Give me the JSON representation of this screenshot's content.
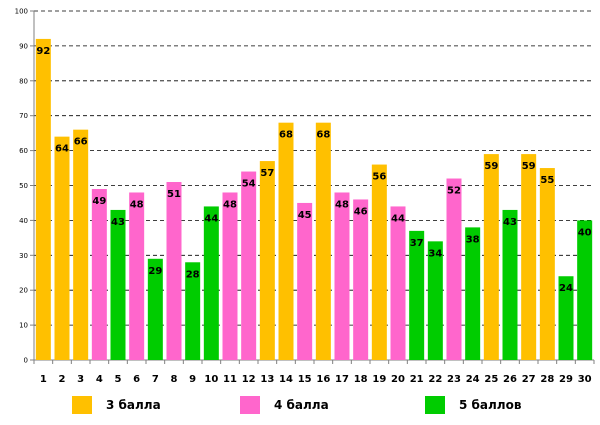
{
  "chart_data": {
    "type": "bar",
    "title": "",
    "xlabel": "",
    "ylabel": "",
    "ylim": [
      0,
      100
    ],
    "yticks": [
      0,
      10,
      20,
      30,
      40,
      50,
      60,
      70,
      80,
      90,
      100
    ],
    "grid": true,
    "categories": [
      "1",
      "2",
      "3",
      "4",
      "5",
      "6",
      "7",
      "8",
      "9",
      "10",
      "11",
      "12",
      "13",
      "14",
      "15",
      "16",
      "17",
      "18",
      "19",
      "20",
      "21",
      "22",
      "23",
      "24",
      "25",
      "26",
      "27",
      "28",
      "29",
      "30"
    ],
    "values": [
      92,
      64,
      66,
      49,
      43,
      48,
      29,
      51,
      28,
      44,
      48,
      54,
      57,
      68,
      45,
      68,
      48,
      46,
      56,
      44,
      37,
      34,
      52,
      38,
      59,
      43,
      59,
      55,
      24,
      40
    ],
    "groups": [
      "3",
      "3",
      "3",
      "4",
      "5",
      "4",
      "5",
      "4",
      "5",
      "5",
      "4",
      "4",
      "3",
      "3",
      "4",
      "3",
      "4",
      "4",
      "3",
      "4",
      "5",
      "5",
      "4",
      "5",
      "3",
      "5",
      "3",
      "3",
      "5",
      "5"
    ],
    "colors": {
      "3": "#FFC000",
      "4": "#FF66CC",
      "5": "#00CC00"
    },
    "legend_position": "bottom",
    "legend": [
      {
        "key": "3",
        "label": "3 балла"
      },
      {
        "key": "4",
        "label": "4 балла"
      },
      {
        "key": "5",
        "label": "5 баллов"
      }
    ]
  }
}
